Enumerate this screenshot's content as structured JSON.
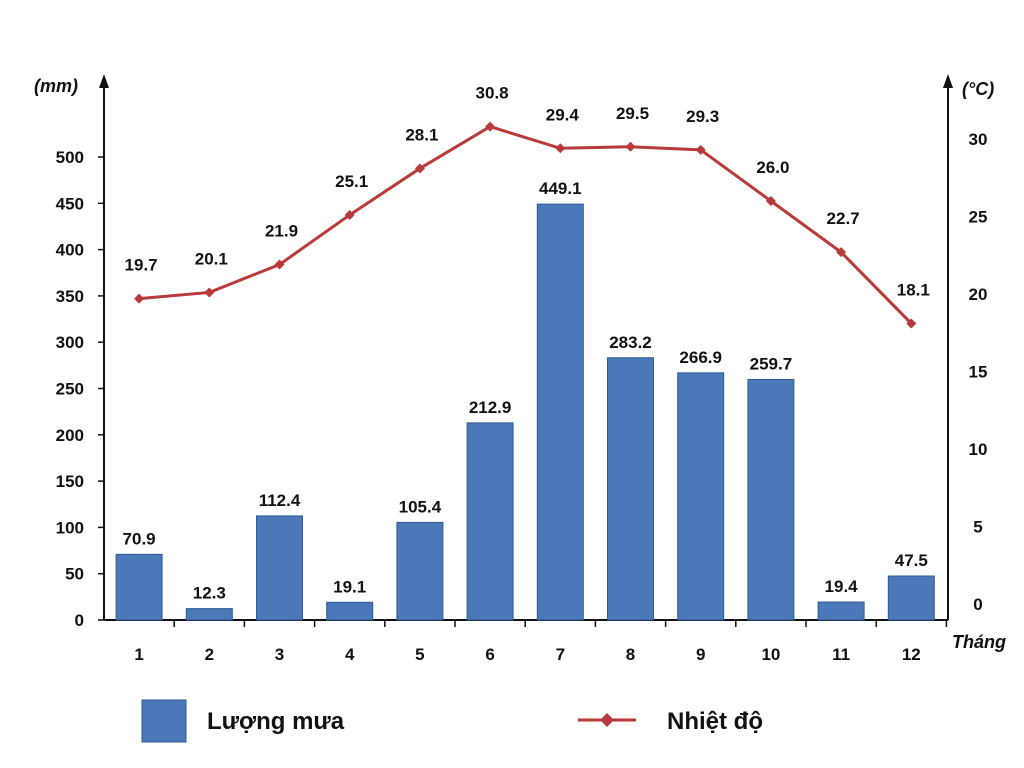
{
  "chart_data": {
    "type": "bar",
    "categories": [
      "1",
      "2",
      "3",
      "4",
      "5",
      "6",
      "7",
      "8",
      "9",
      "10",
      "11",
      "12"
    ],
    "series": [
      {
        "name": "Lượng mưa",
        "type": "bar",
        "axis": "left",
        "values": [
          70.9,
          12.3,
          112.4,
          19.1,
          105.4,
          212.9,
          449.1,
          283.2,
          266.9,
          259.7,
          19.4,
          47.5
        ],
        "labels": [
          "70.9",
          "12.3",
          "112.4",
          "19.1",
          "105.4",
          "212.9",
          "449.1",
          "283.2",
          "266.9",
          "259.7",
          "19.4",
          "47.5"
        ],
        "color": "#4a78b8"
      },
      {
        "name": "Nhiệt độ",
        "type": "line",
        "axis": "right",
        "values": [
          19.7,
          20.1,
          21.9,
          25.1,
          28.1,
          30.8,
          29.4,
          29.5,
          29.3,
          26.0,
          22.7,
          18.1
        ],
        "labels": [
          "19.7",
          "20.1",
          "21.9",
          "25.1",
          "28.1",
          "30.8",
          "29.4",
          "29.5",
          "29.3",
          "26.0",
          "22.7",
          "18.1"
        ],
        "color": "#b83a3a"
      }
    ],
    "xlabel": "Tháng",
    "ylabel_left": "(mm)",
    "ylabel_right": "(°C)",
    "ylim_left": [
      0,
      500
    ],
    "ylim_right": [
      0,
      30
    ],
    "yticks_left": [
      "0",
      "50",
      "100",
      "150",
      "200",
      "250",
      "300",
      "350",
      "400",
      "450",
      "500"
    ],
    "yticks_right": [
      "0",
      "5",
      "10",
      "15",
      "20",
      "25",
      "30"
    ],
    "grid": false,
    "legend": "bottom"
  }
}
